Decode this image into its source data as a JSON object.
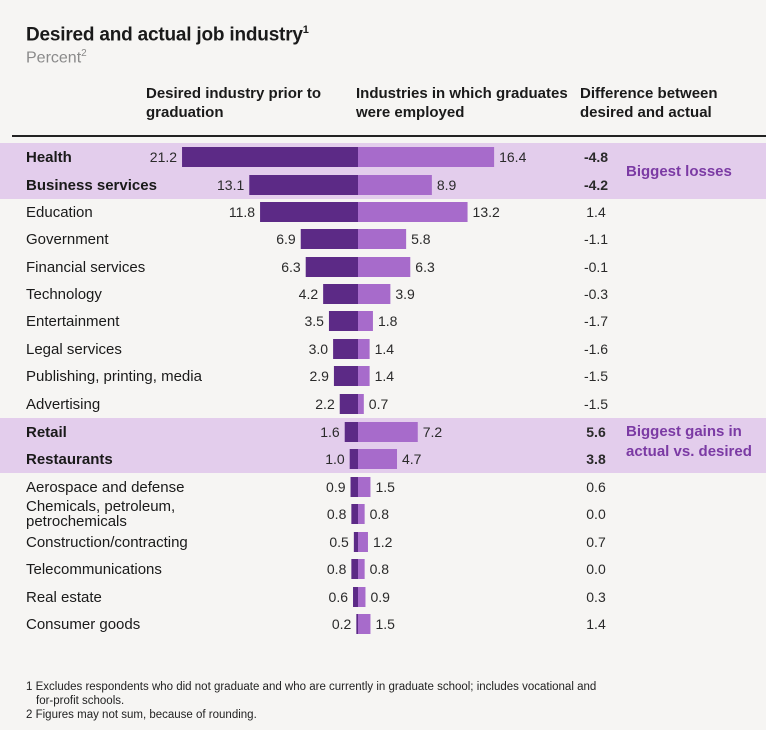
{
  "title": "Desired and actual job industry",
  "title_footnote_mark": "1",
  "subtitle": "Percent",
  "subtitle_footnote_mark": "2",
  "columns": {
    "desired": "Desired industry prior to graduation",
    "actual": "Industries in which graduates were employed",
    "difference": "Difference between desired and actual"
  },
  "highlights": {
    "losses_label": "Biggest losses",
    "gains_label_line1": "Biggest gains in",
    "gains_label_line2": "actual vs. desired"
  },
  "colors": {
    "desired_bar": "#5c2a86",
    "actual_bar": "#a76bcb",
    "highlight_band": "#e3cdec",
    "highlight_text": "#7b3aa4"
  },
  "chart_data": {
    "type": "bar",
    "orientation": "horizontal-diverging",
    "series": [
      {
        "name": "Desired industry prior to graduation",
        "values": [
          21.2,
          13.1,
          11.8,
          6.9,
          6.3,
          4.2,
          3.5,
          3.0,
          2.9,
          2.2,
          1.6,
          1.0,
          0.9,
          0.8,
          0.5,
          0.8,
          0.6,
          0.2
        ]
      },
      {
        "name": "Industries in which graduates were employed",
        "values": [
          16.4,
          8.9,
          13.2,
          5.8,
          6.3,
          3.9,
          1.8,
          1.4,
          1.4,
          0.7,
          7.2,
          4.7,
          1.5,
          0.8,
          1.2,
          0.8,
          0.9,
          1.5
        ]
      }
    ],
    "categories": [
      {
        "label": "Health",
        "desired": "21.2",
        "actual": "16.4",
        "diff": "-4.8",
        "highlight": "loss"
      },
      {
        "label": "Business services",
        "desired": "13.1",
        "actual": "8.9",
        "diff": "-4.2",
        "highlight": "loss"
      },
      {
        "label": "Education",
        "desired": "11.8",
        "actual": "13.2",
        "diff": "1.4",
        "highlight": ""
      },
      {
        "label": "Government",
        "desired": "6.9",
        "actual": "5.8",
        "diff": "-1.1",
        "highlight": ""
      },
      {
        "label": "Financial services",
        "desired": "6.3",
        "actual": "6.3",
        "diff": "-0.1",
        "highlight": ""
      },
      {
        "label": "Technology",
        "desired": "4.2",
        "actual": "3.9",
        "diff": "-0.3",
        "highlight": ""
      },
      {
        "label": "Entertainment",
        "desired": "3.5",
        "actual": "1.8",
        "diff": "-1.7",
        "highlight": ""
      },
      {
        "label": "Legal services",
        "desired": "3.0",
        "actual": "1.4",
        "diff": "-1.6",
        "highlight": ""
      },
      {
        "label": "Publishing, printing, media",
        "desired": "2.9",
        "actual": "1.4",
        "diff": "-1.5",
        "highlight": ""
      },
      {
        "label": "Advertising",
        "desired": "2.2",
        "actual": "0.7",
        "diff": "-1.5",
        "highlight": ""
      },
      {
        "label": "Retail",
        "desired": "1.6",
        "actual": "7.2",
        "diff": "5.6",
        "highlight": "gain"
      },
      {
        "label": "Restaurants",
        "desired": "1.0",
        "actual": "4.7",
        "diff": "3.8",
        "highlight": "gain"
      },
      {
        "label": "Aerospace and defense",
        "desired": "0.9",
        "actual": "1.5",
        "diff": "0.6",
        "highlight": ""
      },
      {
        "label": "Chemicals, petroleum,|petrochemicals",
        "desired": "0.8",
        "actual": "0.8",
        "diff": "0.0",
        "highlight": ""
      },
      {
        "label": "Construction/contracting",
        "desired": "0.5",
        "actual": "1.2",
        "diff": "0.7",
        "highlight": ""
      },
      {
        "label": "Telecommunications",
        "desired": "0.8",
        "actual": "0.8",
        "diff": "0.0",
        "highlight": ""
      },
      {
        "label": "Real estate",
        "desired": "0.6",
        "actual": "0.9",
        "diff": "0.3",
        "highlight": ""
      },
      {
        "label": "Consumer goods",
        "desired": "0.2",
        "actual": "1.5",
        "diff": "1.4",
        "highlight": ""
      }
    ]
  },
  "footnotes": [
    "1 Excludes respondents who did not graduate and who are currently in graduate school; includes vocational and",
    "for-profit schools.",
    "2 Figures may not sum, because of rounding."
  ]
}
